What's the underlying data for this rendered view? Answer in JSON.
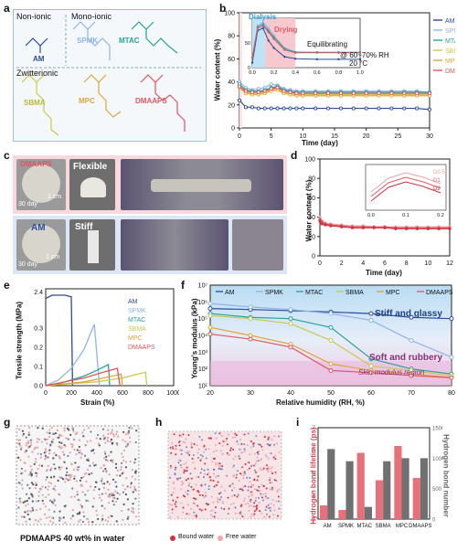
{
  "panel_labels": [
    "a",
    "b",
    "c",
    "d",
    "e",
    "f",
    "g",
    "h",
    "i"
  ],
  "panel_a": {
    "groups": [
      "Non-ionic",
      "Mono-ionic",
      "Zwitterionic"
    ],
    "monomers": [
      "AM",
      "SPMK",
      "MTAC",
      "SBMA",
      "MPC",
      "DMAAPS"
    ],
    "colors": {
      "AM": "#2b4c9b",
      "SPMK": "#8fb4e8",
      "MTAC": "#2aa199",
      "SBMA": "#c9c94a",
      "MPC": "#e0a43a",
      "DMAAPS": "#e0545f"
    }
  },
  "panel_b": {
    "ylabel": "Water content (%)",
    "xlabel": "Time (day)",
    "inset_notes": [
      "Dialysis",
      "Drying",
      "Equilibrating",
      "@ 60~70% RH",
      "20 °C"
    ]
  },
  "panel_c": {
    "labels": [
      "DMAAPS",
      "Flexible",
      "30 day",
      "1 cm",
      "AM",
      "Stiff",
      "30 day",
      "1 cm"
    ]
  },
  "panel_d": {
    "ylabel": "Water content (%)",
    "xlabel": "Time (day)"
  },
  "panel_e": {
    "ylabel": "Tensile strength (MPa)",
    "xlabel": "Strain (%)"
  },
  "panel_f": {
    "ylabel": "Young's modulus (kPa)",
    "xlabel": "Relative humidity (RH, %)",
    "region_labels": [
      "Stiff and glassy",
      "Soft and rubbery",
      "Skin modulus region"
    ]
  },
  "panel_g": {
    "caption": "PDMAAPS 40 wt% in water"
  },
  "panel_h": {
    "legend": [
      "Bound water",
      "Free water"
    ]
  },
  "panel_i": {
    "ylabel_left": "Hydrogen bond lifetime (ps)",
    "ylabel_right": "Hydrogen bond number"
  },
  "chart_data": [
    {
      "panel": "b",
      "type": "line",
      "xlabel": "Time (day)",
      "ylabel": "Water content (%)",
      "xlim": [
        0,
        30
      ],
      "ylim": [
        0,
        100
      ],
      "series": [
        {
          "name": "AM",
          "color": "#2b4c9b",
          "x": [
            0,
            1,
            2,
            3,
            4,
            5,
            6,
            7,
            8,
            9,
            10,
            12,
            14,
            16,
            18,
            20,
            22,
            24,
            26,
            28,
            30
          ],
          "values": [
            24,
            18,
            18,
            17,
            17,
            17,
            17,
            17,
            17,
            17,
            17,
            17,
            17,
            17,
            17,
            17,
            17,
            17,
            17,
            17,
            16
          ]
        },
        {
          "name": "SPMK",
          "color": "#8fb4e8",
          "x": [
            0,
            1,
            2,
            3,
            4,
            5,
            6,
            7,
            8,
            9,
            10,
            12,
            14,
            16,
            18,
            20,
            22,
            24,
            26,
            28,
            30
          ],
          "values": [
            40,
            35,
            33,
            34,
            35,
            38,
            37,
            34,
            33,
            32,
            32,
            32,
            32,
            32,
            32,
            32,
            32,
            32,
            32,
            32,
            31
          ]
        },
        {
          "name": "MTAC",
          "color": "#2aa199",
          "x": [
            0,
            1,
            2,
            3,
            4,
            5,
            6,
            7,
            8,
            9,
            10,
            12,
            14,
            16,
            18,
            20,
            22,
            24,
            26,
            28,
            30
          ],
          "values": [
            38,
            33,
            32,
            32,
            33,
            35,
            36,
            33,
            32,
            31,
            31,
            31,
            31,
            31,
            31,
            31,
            31,
            31,
            31,
            31,
            31
          ]
        },
        {
          "name": "SBMA",
          "color": "#c9c94a",
          "x": [
            0,
            1,
            2,
            3,
            4,
            5,
            6,
            7,
            8,
            9,
            10,
            12,
            14,
            16,
            18,
            20,
            22,
            24,
            26,
            28,
            30
          ],
          "values": [
            36,
            31,
            30,
            30,
            31,
            33,
            34,
            31,
            30,
            29,
            29,
            29,
            29,
            29,
            29,
            29,
            29,
            29,
            29,
            29,
            29
          ]
        },
        {
          "name": "MPC",
          "color": "#e0a43a",
          "x": [
            0,
            1,
            2,
            3,
            4,
            5,
            6,
            7,
            8,
            9,
            10,
            12,
            14,
            16,
            18,
            20,
            22,
            24,
            26,
            28,
            30
          ],
          "values": [
            35,
            30,
            29,
            29,
            30,
            32,
            33,
            30,
            29,
            28,
            28,
            28,
            28,
            28,
            28,
            28,
            28,
            28,
            28,
            28,
            28
          ]
        },
        {
          "name": "DMAAPS",
          "color": "#e0545f",
          "x": [
            0,
            1,
            2,
            3,
            4,
            5,
            6,
            7,
            8,
            9,
            10,
            12,
            14,
            16,
            18,
            20,
            22,
            24,
            26,
            28,
            30
          ],
          "values": [
            36,
            32,
            31,
            31,
            32,
            34,
            35,
            32,
            31,
            30,
            30,
            30,
            30,
            30,
            30,
            30,
            30,
            30,
            30,
            30,
            30
          ]
        }
      ]
    },
    {
      "panel": "b-inset",
      "type": "line",
      "xlim": [
        0,
        1
      ],
      "ylim": [
        0,
        100
      ],
      "series": [
        {
          "name": "AM",
          "x": [
            0,
            0.05,
            0.1,
            0.15,
            0.2,
            0.3,
            0.4,
            0.6,
            0.8,
            1.0
          ],
          "values": [
            10,
            75,
            80,
            55,
            40,
            22,
            18,
            17,
            17,
            17
          ]
        },
        {
          "name": "SPMK",
          "x": [
            0,
            0.05,
            0.1,
            0.15,
            0.2,
            0.3,
            0.4,
            0.6,
            0.8,
            1.0
          ],
          "values": [
            20,
            85,
            92,
            80,
            65,
            40,
            32,
            31,
            31,
            31
          ]
        },
        {
          "name": "MTAC",
          "x": [
            0,
            0.05,
            0.1,
            0.15,
            0.2,
            0.3,
            0.4,
            0.6,
            0.8,
            1.0
          ],
          "values": [
            20,
            82,
            88,
            75,
            62,
            38,
            31,
            31,
            31,
            31
          ]
        },
        {
          "name": "DMAAPS",
          "x": [
            0,
            0.05,
            0.1,
            0.15,
            0.2,
            0.3,
            0.4,
            0.6,
            0.8,
            1.0
          ],
          "values": [
            20,
            80,
            85,
            72,
            58,
            36,
            30,
            30,
            30,
            30
          ]
        }
      ]
    },
    {
      "panel": "d",
      "type": "line",
      "xlabel": "Time (day)",
      "ylabel": "Water content (%)",
      "xlim": [
        0,
        12
      ],
      "ylim": [
        0,
        100
      ],
      "series": [
        {
          "name": "D0.5",
          "color": "#f0a0a8",
          "x": [
            0,
            0.2,
            0.5,
            1,
            2,
            3,
            4,
            5,
            6,
            7,
            8,
            9,
            10,
            11,
            12
          ],
          "values": [
            40,
            36,
            34,
            33,
            32,
            31,
            31,
            30,
            30,
            30,
            30,
            30,
            30,
            30,
            30
          ]
        },
        {
          "name": "D1",
          "color": "#e05a66",
          "x": [
            0,
            0.2,
            0.5,
            1,
            2,
            3,
            4,
            5,
            6,
            7,
            8,
            9,
            10,
            11,
            12
          ],
          "values": [
            38,
            35,
            33,
            32,
            31,
            30,
            30,
            30,
            30,
            29,
            29,
            29,
            29,
            29,
            29
          ]
        },
        {
          "name": "D2",
          "color": "#d32f3c",
          "x": [
            0,
            0.2,
            0.5,
            1,
            2,
            3,
            4,
            5,
            6,
            7,
            8,
            9,
            10,
            11,
            12
          ],
          "values": [
            36,
            33,
            32,
            31,
            30,
            29,
            29,
            29,
            29,
            28,
            28,
            28,
            28,
            28,
            28
          ]
        }
      ]
    },
    {
      "panel": "e",
      "type": "line",
      "xlabel": "Strain (%)",
      "ylabel": "Tensile strength (MPa)",
      "xlim": [
        0,
        1000
      ],
      "series": [
        {
          "name": "AM",
          "color": "#2b4c9b",
          "x": [
            0,
            50,
            100,
            150,
            200,
            210
          ],
          "values": [
            2.2,
            2.3,
            2.3,
            2.3,
            2.25,
            0.0
          ]
        },
        {
          "name": "SPMK",
          "color": "#8fb4e8",
          "x": [
            0,
            100,
            200,
            300,
            380,
            420
          ],
          "values": [
            0,
            0.03,
            0.09,
            0.19,
            0.32,
            0.0
          ]
        },
        {
          "name": "MTAC",
          "color": "#2aa199",
          "x": [
            0,
            100,
            200,
            300,
            400,
            490,
            500
          ],
          "values": [
            0,
            0.01,
            0.03,
            0.05,
            0.08,
            0.11,
            0.0
          ]
        },
        {
          "name": "SBMA",
          "color": "#c9c94a",
          "x": [
            0,
            200,
            400,
            600,
            780,
            790
          ],
          "values": [
            0,
            0.01,
            0.02,
            0.04,
            0.07,
            0.0
          ]
        },
        {
          "name": "MPC",
          "color": "#e0a43a",
          "x": [
            0,
            150,
            300,
            450,
            590,
            600
          ],
          "values": [
            0,
            0.01,
            0.02,
            0.04,
            0.06,
            0.0
          ]
        },
        {
          "name": "DMAAPS",
          "color": "#e0545f",
          "x": [
            0,
            150,
            300,
            450,
            560,
            580
          ],
          "values": [
            0,
            0.02,
            0.04,
            0.07,
            0.09,
            0.0
          ]
        }
      ]
    },
    {
      "panel": "f",
      "type": "line",
      "xlabel": "Relative humidity (RH, %)",
      "ylabel": "Young's modulus (kPa)",
      "x": [
        20,
        30,
        40,
        50,
        60,
        70,
        80
      ],
      "ylim": [
        10,
        10000000
      ],
      "yscale": "log",
      "series": [
        {
          "name": "AM",
          "color": "#2b4c9b",
          "values": [
            400000,
            350000,
            300000,
            250000,
            200000,
            120000,
            100000
          ]
        },
        {
          "name": "SPMK",
          "color": "#8fb4e8",
          "values": [
            800000,
            500000,
            350000,
            200000,
            80000,
            5000,
            500
          ]
        },
        {
          "name": "MTAC",
          "color": "#2aa199",
          "values": [
            200000,
            120000,
            100000,
            30000,
            400,
            100,
            50
          ]
        },
        {
          "name": "SBMA",
          "color": "#c9c94a",
          "values": [
            150000,
            100000,
            50000,
            5000,
            150,
            80,
            40
          ]
        },
        {
          "name": "MPC",
          "color": "#e0a43a",
          "values": [
            30000,
            10000,
            3000,
            200,
            80,
            50,
            30
          ]
        },
        {
          "name": "DMAAPS",
          "color": "#e0545f",
          "values": [
            12000,
            6000,
            2000,
            80,
            60,
            40,
            30
          ]
        }
      ]
    },
    {
      "panel": "i",
      "type": "bar",
      "categories": [
        "AM",
        "SPMK",
        "MTAC",
        "SBMA",
        "MPC",
        "DMAAPS"
      ],
      "series": [
        {
          "name": "Hydrogen bond lifetime (ps)",
          "color": "#e8707a",
          "values": [
            3.6,
            3.4,
            5.9,
            4.7,
            6.2,
            4.8
          ]
        },
        {
          "name": "Hydrogen bond number",
          "color": "#707070",
          "values": [
            1150,
            950,
            200,
            950,
            1000,
            1000
          ]
        }
      ],
      "ylim_left": [
        3,
        7
      ],
      "ylim_right": [
        0,
        1500
      ]
    }
  ]
}
